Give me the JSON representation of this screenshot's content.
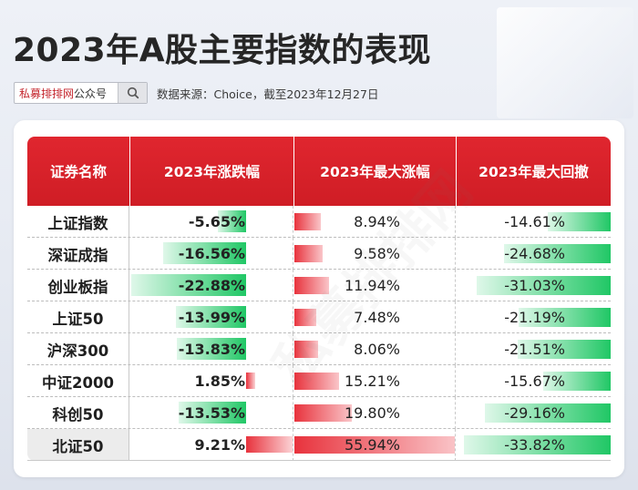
{
  "title": "2023年A股主要指数的表现",
  "search": {
    "text_red": "私募排排网",
    "text_rest": "公众号",
    "icon": "search-icon"
  },
  "source_note": "数据来源：Choice，截至2023年12月27日",
  "colors": {
    "header_red": "#d4212a",
    "positive_bar": "#e8333d",
    "negative_bar": "#1ec460"
  },
  "table": {
    "headers": [
      "证券名称",
      "2023年涨跌幅",
      "2023年最大涨幅",
      "2023年最大回撤"
    ],
    "rows": [
      {
        "name": "上证指数",
        "change": "-5.65%",
        "max_gain": "8.94%",
        "max_drawdown": "-14.61%"
      },
      {
        "name": "深证成指",
        "change": "-16.56%",
        "max_gain": "9.58%",
        "max_drawdown": "-24.68%"
      },
      {
        "name": "创业板指",
        "change": "-22.88%",
        "max_gain": "11.94%",
        "max_drawdown": "-31.03%"
      },
      {
        "name": "上证50",
        "change": "-13.99%",
        "max_gain": "7.48%",
        "max_drawdown": "-21.19%"
      },
      {
        "name": "沪深300",
        "change": "-13.83%",
        "max_gain": "8.06%",
        "max_drawdown": "-21.51%"
      },
      {
        "name": "中证2000",
        "change": "1.85%",
        "max_gain": "15.21%",
        "max_drawdown": "-15.67%"
      },
      {
        "name": "科创50",
        "change": "-13.53%",
        "max_gain": "19.80%",
        "max_drawdown": "-29.16%"
      },
      {
        "name": "北证50",
        "change": "9.21%",
        "max_gain": "55.94%",
        "max_drawdown": "-33.82%"
      }
    ]
  },
  "chart_data": {
    "type": "table",
    "title": "2023年A股主要指数的表现",
    "columns": [
      "证券名称",
      "2023年涨跌幅",
      "2023年最大涨幅",
      "2023年最大回撤"
    ],
    "categories": [
      "上证指数",
      "深证成指",
      "创业板指",
      "上证50",
      "沪深300",
      "中证2000",
      "科创50",
      "北证50"
    ],
    "series": [
      {
        "name": "2023年涨跌幅",
        "values": [
          -5.65,
          -16.56,
          -22.88,
          -13.99,
          -13.83,
          1.85,
          -13.53,
          9.21
        ]
      },
      {
        "name": "2023年最大涨幅",
        "values": [
          8.94,
          9.58,
          11.94,
          7.48,
          8.06,
          15.21,
          19.8,
          55.94
        ]
      },
      {
        "name": "2023年最大回撤",
        "values": [
          -14.61,
          -24.68,
          -31.03,
          -21.19,
          -21.51,
          -15.67,
          -29.16,
          -33.82
        ]
      }
    ]
  }
}
